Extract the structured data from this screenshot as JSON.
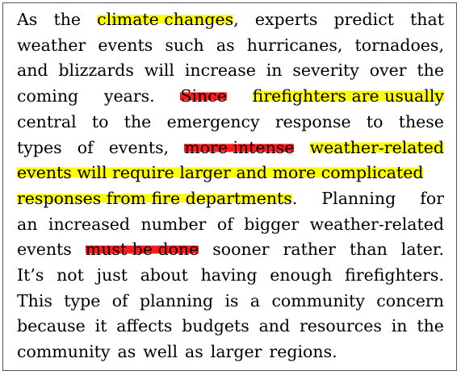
{
  "passage": {
    "lines": [
      [
        {
          "t": "As"
        },
        {
          "t": "the"
        },
        {
          "t": "climate changes",
          "hl": "y"
        },
        {
          "t": ","
        },
        {
          "t": "experts"
        },
        {
          "t": "predict"
        },
        {
          "t": "that"
        }
      ],
      [
        {
          "t": "weather"
        },
        {
          "t": "events"
        },
        {
          "t": "such"
        },
        {
          "t": "as"
        },
        {
          "t": "hurricanes,"
        },
        {
          "t": "tornadoes,"
        }
      ],
      [
        {
          "t": "and"
        },
        {
          "t": "blizzards"
        },
        {
          "t": "will"
        },
        {
          "t": "increase"
        },
        {
          "t": "in"
        },
        {
          "t": "severity"
        },
        {
          "t": "over"
        },
        {
          "t": "the"
        }
      ],
      [
        {
          "t": "coming"
        },
        {
          "t": "years."
        },
        {
          "t": "Since",
          "hl": "r"
        },
        {
          "t": "firefighters are usually",
          "hl": "y"
        }
      ],
      [
        {
          "t": "central"
        },
        {
          "t": "to"
        },
        {
          "t": "the"
        },
        {
          "t": "emergency"
        },
        {
          "t": "response"
        },
        {
          "t": "to"
        },
        {
          "t": "these"
        }
      ],
      [
        {
          "t": "types"
        },
        {
          "t": "of"
        },
        {
          "t": "events,"
        },
        {
          "t": "more intense",
          "hl": "r"
        },
        {
          "t": "weather-related",
          "hl": "y"
        }
      ],
      [
        {
          "t": "events will require larger and more complicated",
          "hl": "y"
        }
      ],
      [
        {
          "t": "responses from fire departments",
          "hl": "y"
        },
        {
          "t": ". Planning"
        },
        {
          "t": "for"
        }
      ],
      [
        {
          "t": "an"
        },
        {
          "t": "increased"
        },
        {
          "t": "number"
        },
        {
          "t": "of"
        },
        {
          "t": "bigger"
        },
        {
          "t": "weather-related"
        }
      ],
      [
        {
          "t": "events"
        },
        {
          "t": "must be done",
          "hl": "r"
        },
        {
          "t": "sooner"
        },
        {
          "t": "rather"
        },
        {
          "t": "than"
        },
        {
          "t": "later."
        }
      ],
      [
        {
          "t": "It’s"
        },
        {
          "t": "not"
        },
        {
          "t": "just"
        },
        {
          "t": "about"
        },
        {
          "t": "having"
        },
        {
          "t": "enough"
        },
        {
          "t": "firefighters."
        }
      ],
      [
        {
          "t": "This"
        },
        {
          "t": "type"
        },
        {
          "t": "of"
        },
        {
          "t": "planning"
        },
        {
          "t": "is"
        },
        {
          "t": "a"
        },
        {
          "t": "community"
        },
        {
          "t": "concern"
        }
      ],
      [
        {
          "t": "because"
        },
        {
          "t": "it"
        },
        {
          "t": "affects"
        },
        {
          "t": "budgets"
        },
        {
          "t": "and"
        },
        {
          "t": "resources"
        },
        {
          "t": "in"
        },
        {
          "t": "the"
        }
      ],
      [
        {
          "t": "community"
        },
        {
          "t": "as"
        },
        {
          "t": "well"
        },
        {
          "t": "as"
        },
        {
          "t": "larger"
        },
        {
          "t": "regions.",
          "last": true
        }
      ]
    ]
  },
  "colors": {
    "highlight_yellow": "#ffff00",
    "highlight_red": "#ff1a1a"
  }
}
